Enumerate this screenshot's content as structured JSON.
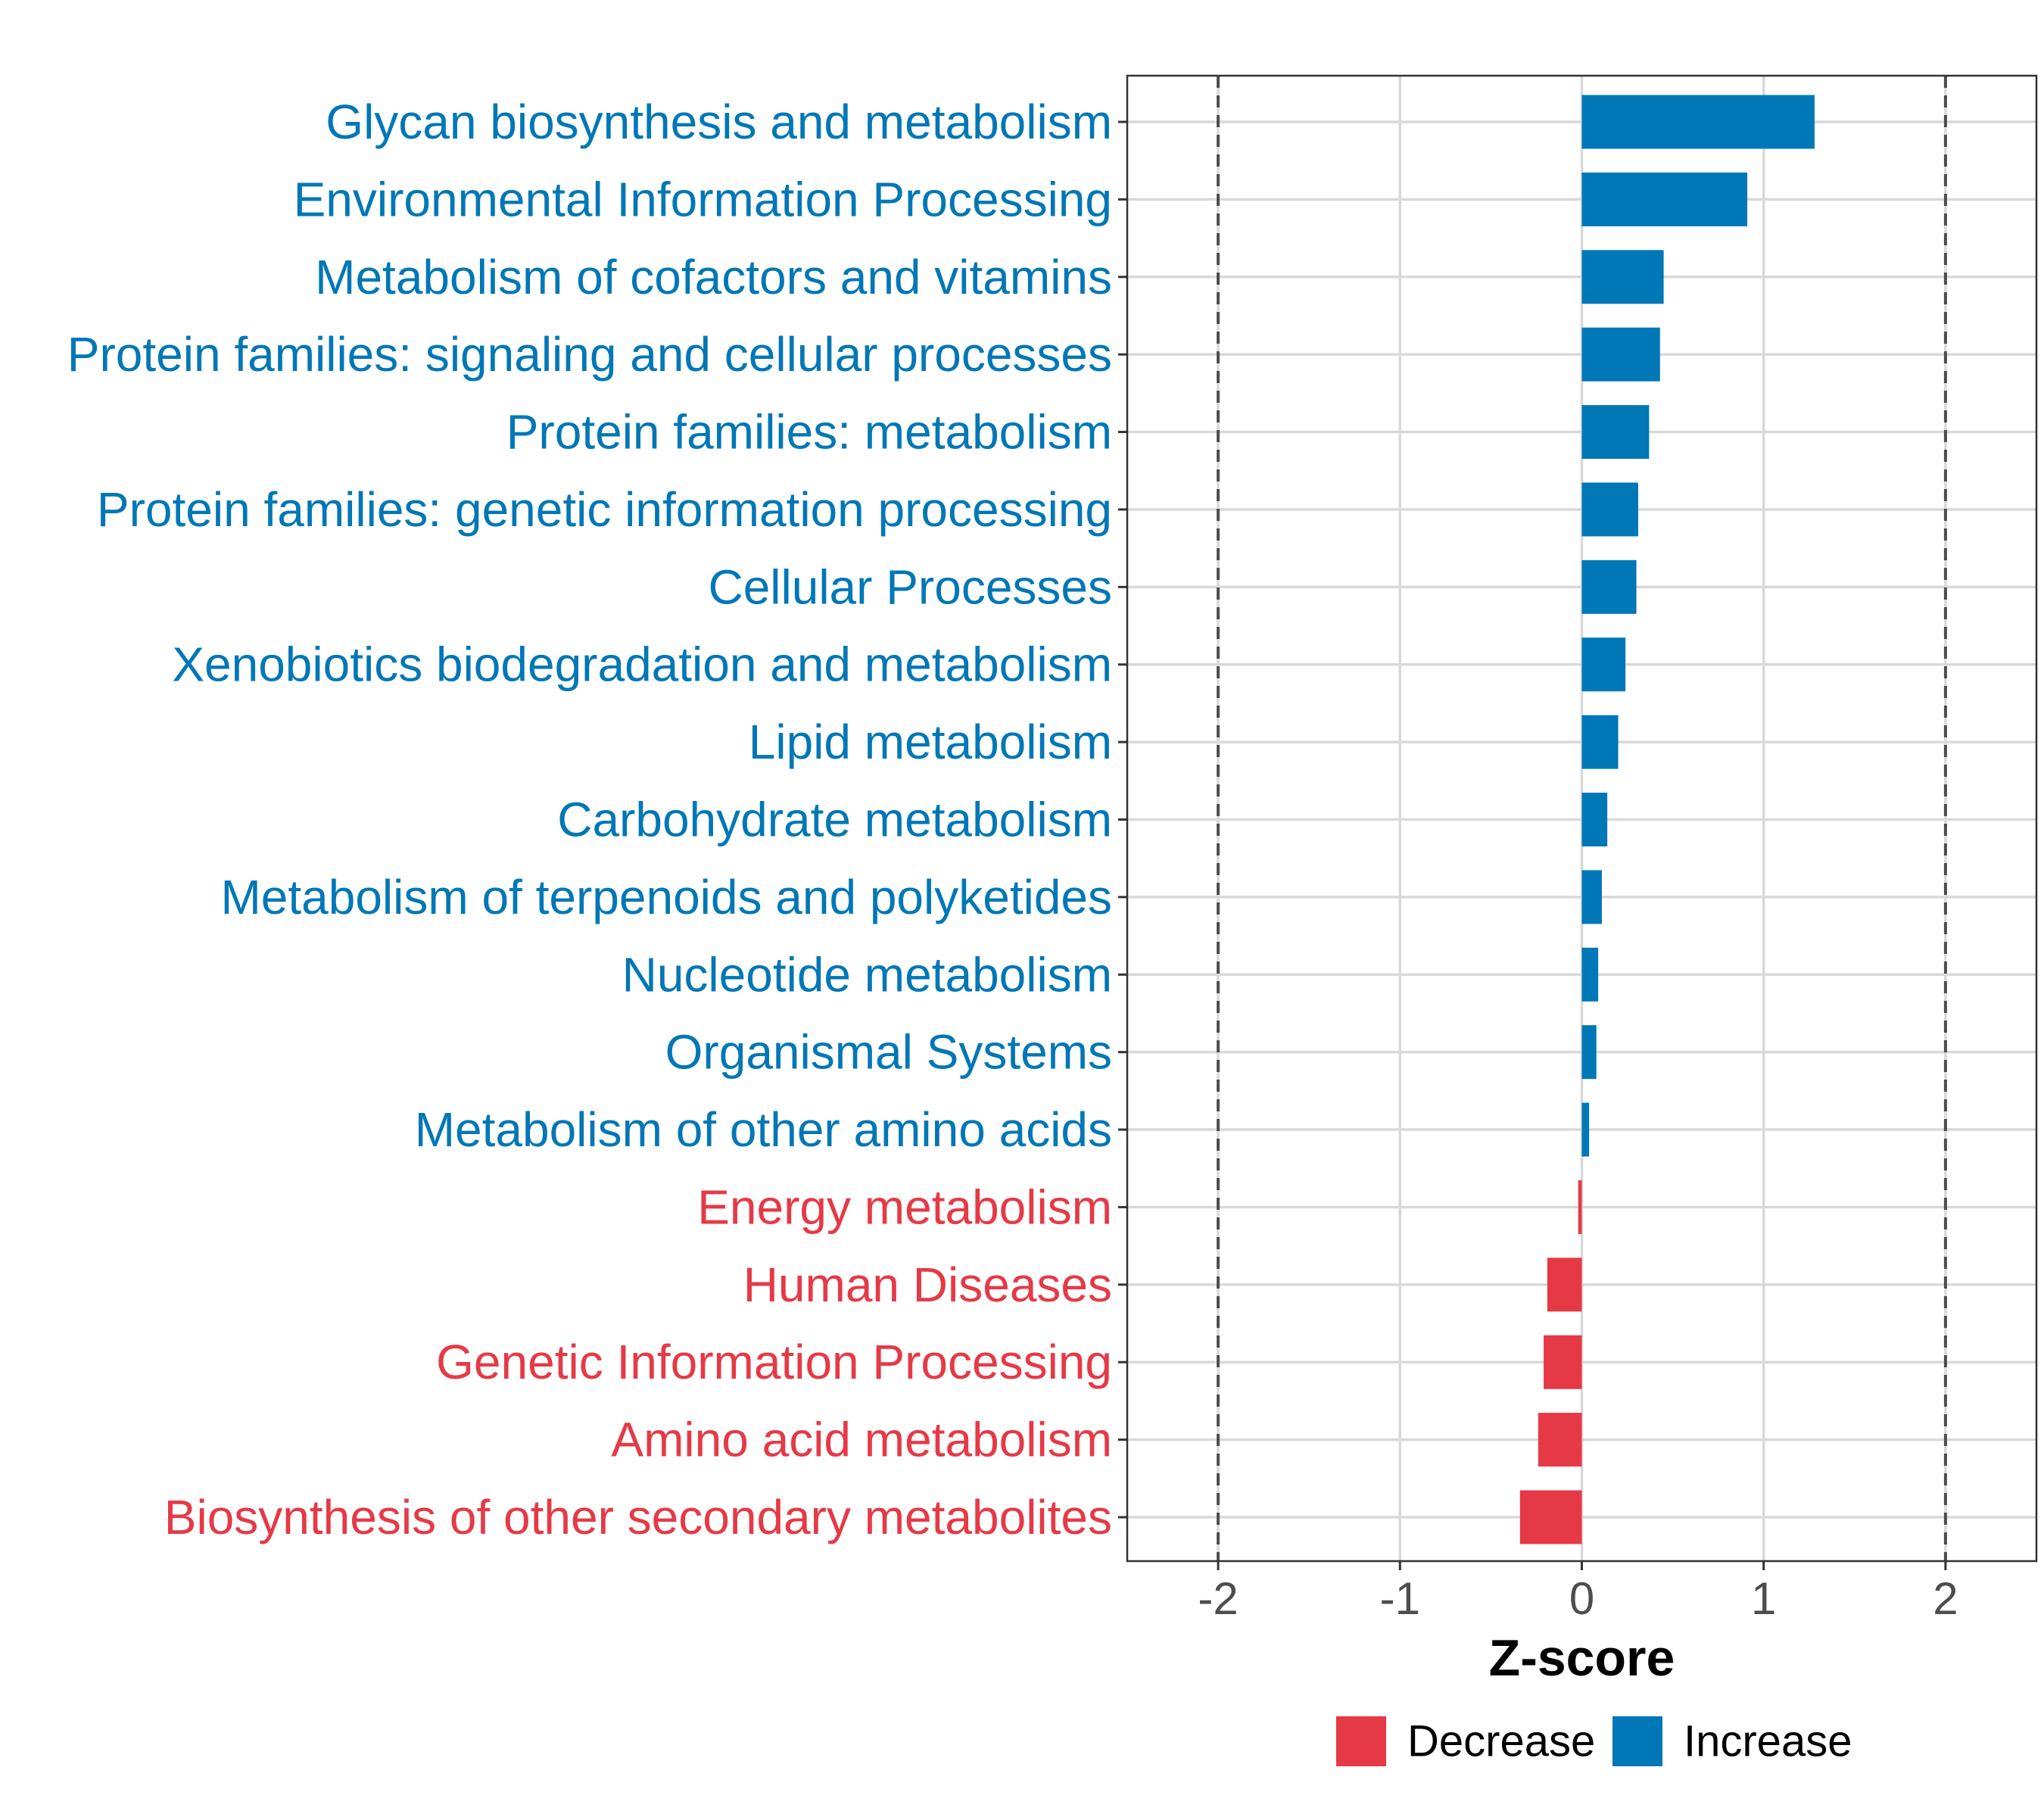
{
  "chart_data": {
    "type": "bar",
    "orientation": "horizontal",
    "xlabel": "Z-score",
    "xlim": [
      -2.5,
      2.5
    ],
    "x_ticks": [
      -2,
      -1,
      0,
      1,
      2
    ],
    "x_tick_labels": [
      "-2",
      "-1",
      "0",
      "1",
      "2"
    ],
    "reference_lines": [
      -2,
      2
    ],
    "grid": true,
    "categories": [
      "Glycan biosynthesis and metabolism",
      "Environmental Information Processing",
      "Metabolism of cofactors and vitamins",
      "Protein families: signaling and cellular processes",
      "Protein families: metabolism",
      "Protein families: genetic information processing",
      "Cellular Processes",
      "Xenobiotics biodegradation and metabolism",
      "Lipid metabolism",
      "Carbohydrate metabolism",
      "Metabolism of terpenoids and polyketides",
      "Nucleotide metabolism",
      "Organismal Systems",
      "Metabolism of other amino acids",
      "Energy metabolism",
      "Human Diseases",
      "Genetic Information Processing",
      "Amino acid metabolism",
      "Biosynthesis of other secondary metabolites"
    ],
    "values": [
      1.28,
      0.91,
      0.45,
      0.43,
      0.37,
      0.31,
      0.3,
      0.24,
      0.2,
      0.14,
      0.11,
      0.09,
      0.08,
      0.04,
      -0.02,
      -0.19,
      -0.21,
      -0.24,
      -0.34
    ],
    "legend": {
      "position": "bottom",
      "items": [
        {
          "label": "Decrease",
          "color": "#E63946"
        },
        {
          "label": "Increase",
          "color": "#0077B6"
        }
      ]
    },
    "colors": {
      "increase": "#0077B6",
      "decrease": "#E63946"
    }
  }
}
